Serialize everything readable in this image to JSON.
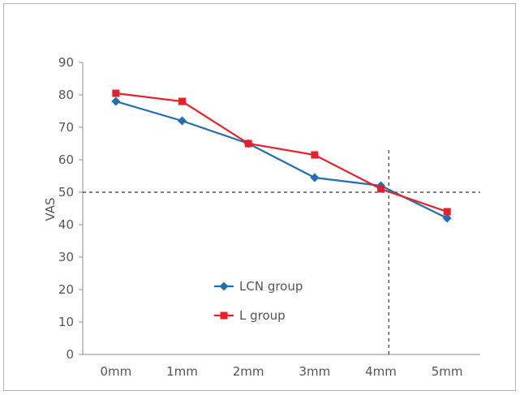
{
  "chart_data": {
    "type": "line",
    "title": "",
    "xlabel": "",
    "ylabel": "VAS",
    "categories": [
      "0mm",
      "1mm",
      "2mm",
      "3mm",
      "4mm",
      "5mm"
    ],
    "ylim": [
      0,
      90
    ],
    "yticks": [
      0,
      10,
      20,
      30,
      40,
      50,
      60,
      70,
      80,
      90
    ],
    "grid": false,
    "legend_position": "center-left",
    "reference_lines": [
      {
        "orientation": "horizontal",
        "value": 50,
        "style": "dashed"
      },
      {
        "orientation": "vertical",
        "at_category": "4mm",
        "style": "dashed"
      }
    ],
    "series": [
      {
        "name": "LCN group",
        "color": "#1f6fb5",
        "marker": "diamond",
        "values": [
          78,
          72,
          65,
          54.5,
          52,
          42
        ]
      },
      {
        "name": "L group",
        "color": "#e8202a",
        "marker": "square",
        "values": [
          80.5,
          78,
          65,
          61.5,
          51,
          44
        ]
      }
    ]
  }
}
